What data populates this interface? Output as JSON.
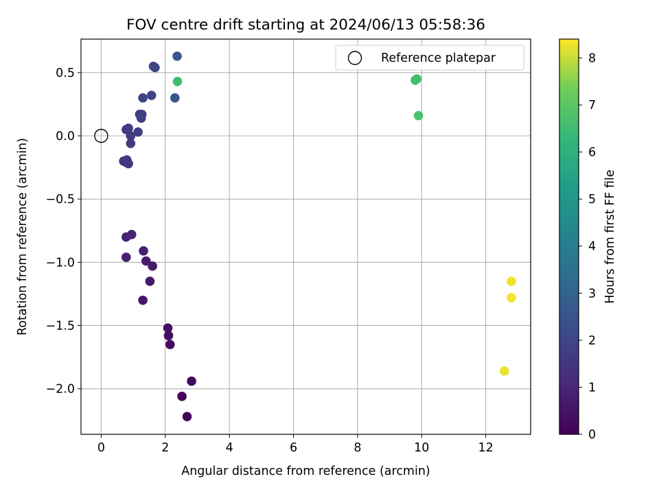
{
  "chart_data": {
    "type": "scatter",
    "title": "FOV centre drift starting at 2024/06/13 05:58:36",
    "xlabel": "Angular distance from reference (arcmin)",
    "ylabel": "Rotation from reference (arcmin)",
    "xlim": [
      -0.63,
      13.4
    ],
    "ylim": [
      -2.36,
      0.765
    ],
    "x_ticks": [
      0,
      2,
      4,
      6,
      8,
      10,
      12
    ],
    "x_tick_labels": [
      "0",
      "2",
      "4",
      "6",
      "8",
      "10",
      "12"
    ],
    "y_ticks": [
      0.5,
      0.0,
      -0.5,
      -1.0,
      -1.5,
      -2.0
    ],
    "y_tick_labels": [
      "0.5",
      "0.0",
      "−0.5",
      "−1.0",
      "−1.5",
      "−2.0"
    ],
    "grid": true,
    "legend": {
      "placement": "top-right",
      "entries": [
        "Reference platepar"
      ]
    },
    "reference_point": {
      "x": 0,
      "y": 0
    },
    "colormap": "viridis",
    "colorbar": {
      "label": "Hours from first FF file",
      "range": [
        0,
        8.4
      ],
      "ticks": [
        0,
        1,
        2,
        3,
        4,
        5,
        6,
        7,
        8
      ],
      "tick_labels": [
        "0",
        "1",
        "2",
        "3",
        "4",
        "5",
        "6",
        "7",
        "8"
      ]
    },
    "points": [
      {
        "x": 2.68,
        "y": -2.22,
        "hours": 0.1
      },
      {
        "x": 2.52,
        "y": -2.06,
        "hours": 0.15
      },
      {
        "x": 2.82,
        "y": -1.94,
        "hours": 0.2
      },
      {
        "x": 2.15,
        "y": -1.65,
        "hours": 0.3
      },
      {
        "x": 2.1,
        "y": -1.58,
        "hours": 0.35
      },
      {
        "x": 2.08,
        "y": -1.52,
        "hours": 0.4
      },
      {
        "x": 1.3,
        "y": -1.3,
        "hours": 0.6
      },
      {
        "x": 1.52,
        "y": -1.15,
        "hours": 0.65
      },
      {
        "x": 1.6,
        "y": -1.03,
        "hours": 0.7
      },
      {
        "x": 1.4,
        "y": -0.99,
        "hours": 0.75
      },
      {
        "x": 1.32,
        "y": -0.91,
        "hours": 0.8
      },
      {
        "x": 0.78,
        "y": -0.96,
        "hours": 0.85
      },
      {
        "x": 0.78,
        "y": -0.8,
        "hours": 0.95
      },
      {
        "x": 0.95,
        "y": -0.78,
        "hours": 1.0
      },
      {
        "x": 0.7,
        "y": -0.2,
        "hours": 1.5
      },
      {
        "x": 0.78,
        "y": -0.21,
        "hours": 1.52
      },
      {
        "x": 0.85,
        "y": -0.22,
        "hours": 1.55
      },
      {
        "x": 0.8,
        "y": -0.19,
        "hours": 1.58
      },
      {
        "x": 0.92,
        "y": -0.06,
        "hours": 1.62
      },
      {
        "x": 0.92,
        "y": 0.0,
        "hours": 1.65
      },
      {
        "x": 0.78,
        "y": 0.05,
        "hours": 1.7
      },
      {
        "x": 0.85,
        "y": 0.06,
        "hours": 1.72
      },
      {
        "x": 1.15,
        "y": 0.03,
        "hours": 1.75
      },
      {
        "x": 1.25,
        "y": 0.14,
        "hours": 1.8
      },
      {
        "x": 1.2,
        "y": 0.17,
        "hours": 1.82
      },
      {
        "x": 1.27,
        "y": 0.17,
        "hours": 1.85
      },
      {
        "x": 1.3,
        "y": 0.3,
        "hours": 1.9
      },
      {
        "x": 1.57,
        "y": 0.32,
        "hours": 1.95
      },
      {
        "x": 1.63,
        "y": 0.55,
        "hours": 2.0
      },
      {
        "x": 1.68,
        "y": 0.54,
        "hours": 2.02
      },
      {
        "x": 2.3,
        "y": 0.3,
        "hours": 2.5
      },
      {
        "x": 2.37,
        "y": 0.63,
        "hours": 2.55
      },
      {
        "x": 2.38,
        "y": 0.43,
        "hours": 6.5
      },
      {
        "x": 9.8,
        "y": 0.44,
        "hours": 6.6
      },
      {
        "x": 9.85,
        "y": 0.45,
        "hours": 6.6
      },
      {
        "x": 9.9,
        "y": 0.16,
        "hours": 6.7
      },
      {
        "x": 12.8,
        "y": -1.15,
        "hours": 8.3
      },
      {
        "x": 12.8,
        "y": -1.28,
        "hours": 8.3
      },
      {
        "x": 12.58,
        "y": -1.86,
        "hours": 8.25
      }
    ]
  }
}
